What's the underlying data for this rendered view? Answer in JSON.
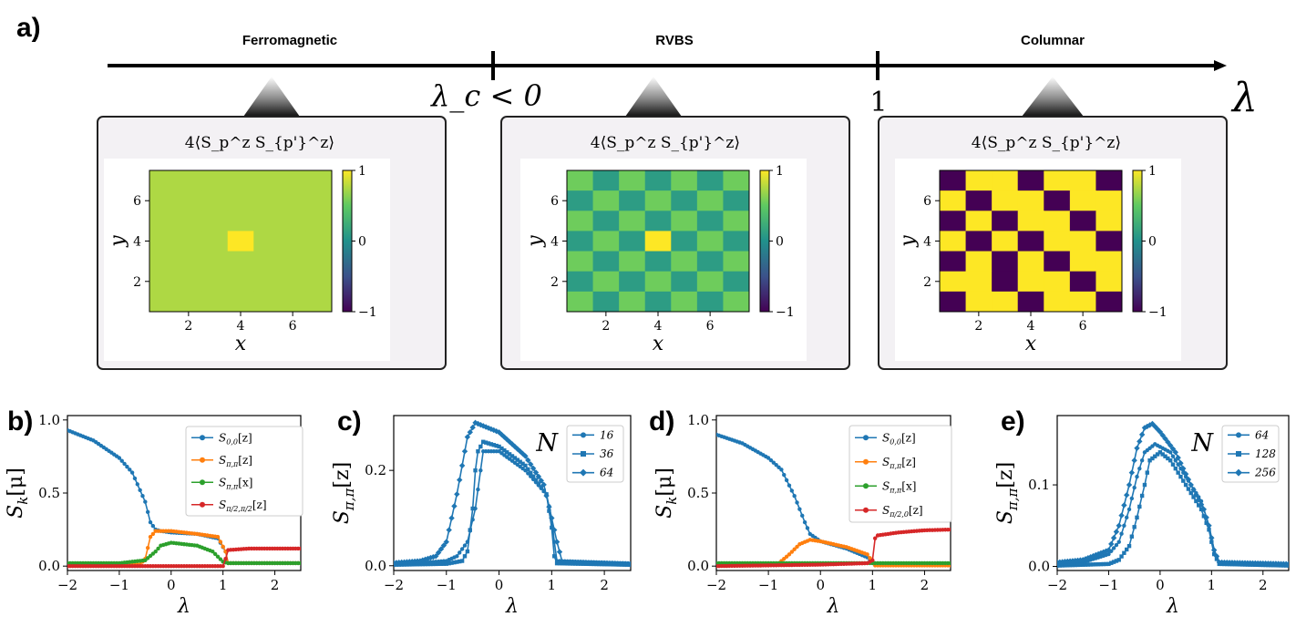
{
  "panel_labels": [
    "a)",
    "b)",
    "c)",
    "d)",
    "e)"
  ],
  "phase_axis": {
    "phases": [
      "Ferromagnetic",
      "RVBS",
      "Columnar"
    ],
    "tick_labels": [
      "λ_c < 0",
      "1"
    ],
    "axis_label": "λ"
  },
  "heatmap_common": {
    "title": "4⟨S_p^z S_{p'}^z⟩",
    "xlabel": "x",
    "ylabel": "y",
    "xticks": [
      "2",
      "4",
      "6"
    ],
    "yticks": [
      "2",
      "4",
      "6"
    ],
    "colorbar_ticks": [
      "1",
      "0",
      "−1"
    ]
  },
  "colors": {
    "blue": "#1f77b4",
    "orange": "#ff7f0e",
    "green": "#2ca02c",
    "red": "#d62728",
    "panel_bg": "#f3f1f4",
    "yellow": "#fde725",
    "purple": "#440154",
    "teal": "#21918c",
    "lightgreen": "#5ec962",
    "ferro": "#c8e02a"
  },
  "chart_data": [
    {
      "panel": "a-ferromagnetic",
      "type": "heatmap",
      "title": "4⟨S_p^z S_{p'}^z⟩",
      "xlabel": "x",
      "ylabel": "y",
      "grid_size": [
        7,
        7
      ],
      "vmin": -1,
      "vmax": 1,
      "pattern": "uniform",
      "base_value": 0.75,
      "center_cell": [
        4,
        4
      ],
      "center_value": 1
    },
    {
      "panel": "a-rvbs",
      "type": "heatmap",
      "title": "4⟨S_p^z S_{p'}^z⟩",
      "xlabel": "x",
      "ylabel": "y",
      "grid_size": [
        7,
        7
      ],
      "vmin": -1,
      "vmax": 1,
      "pattern": "checkerboard",
      "values_pair": [
        0.55,
        0.1
      ],
      "center_cell": [
        4,
        4
      ],
      "center_value": 1
    },
    {
      "panel": "a-columnar",
      "type": "heatmap",
      "title": "4⟨S_p^z S_{p'}^z⟩",
      "xlabel": "x",
      "ylabel": "y",
      "grid_size": [
        7,
        7
      ],
      "vmin": -1,
      "vmax": 1,
      "pattern": "columnar",
      "rows_top_to_bottom": [
        [
          -1,
          1,
          1,
          -1,
          1,
          1,
          -1
        ],
        [
          1,
          -1,
          1,
          1,
          -1,
          1,
          1
        ],
        [
          -1,
          1,
          -1,
          1,
          1,
          -1,
          1
        ],
        [
          1,
          -1,
          1,
          -1,
          1,
          1,
          -1
        ],
        [
          -1,
          1,
          -1,
          1,
          -1,
          1,
          1
        ],
        [
          1,
          1,
          -1,
          1,
          1,
          -1,
          1
        ],
        [
          -1,
          1,
          1,
          -1,
          1,
          1,
          -1
        ]
      ]
    },
    {
      "panel": "b",
      "type": "line",
      "xlabel": "λ",
      "ylabel": "S_k[μ]",
      "xlim": [
        -2,
        2.5
      ],
      "ylim": [
        -0.03,
        1.03
      ],
      "xticks": [
        "−2",
        "−1",
        "0",
        "1",
        "2"
      ],
      "yticks": [
        "0.0",
        "0.5",
        "1.0"
      ],
      "legend_position": "right-middle",
      "series": [
        {
          "name": "S_{0,0}[z]",
          "color": "blue",
          "x": [
            -2,
            -1.5,
            -1,
            -0.75,
            -0.5,
            -0.4,
            -0.3,
            -0.2,
            0,
            0.5,
            0.9,
            1.05,
            1.1,
            2.5
          ],
          "y": [
            0.93,
            0.86,
            0.74,
            0.64,
            0.44,
            0.3,
            0.25,
            0.24,
            0.23,
            0.22,
            0.19,
            0.1,
            0.02,
            0.02
          ]
        },
        {
          "name": "S_{π,π}[z]",
          "color": "orange",
          "x": [
            -2,
            -0.6,
            -0.5,
            -0.4,
            -0.3,
            0,
            0.5,
            0.9,
            1.05,
            1.1,
            2.5
          ],
          "y": [
            0.01,
            0.01,
            0.05,
            0.2,
            0.24,
            0.24,
            0.22,
            0.2,
            0.1,
            0.02,
            0.02
          ]
        },
        {
          "name": "S_{π,π}[x]",
          "color": "green",
          "x": [
            -2,
            -1,
            -0.5,
            -0.3,
            -0.2,
            0,
            0.5,
            0.8,
            1,
            1.1,
            2.5
          ],
          "y": [
            0.02,
            0.02,
            0.04,
            0.1,
            0.14,
            0.16,
            0.14,
            0.1,
            0.03,
            0.02,
            0.02
          ]
        },
        {
          "name": "S_{π/2,π/2}[z]",
          "color": "red",
          "x": [
            -2,
            0,
            1,
            1.05,
            1.1,
            1.5,
            2.5
          ],
          "y": [
            0.0,
            0.0,
            0.0,
            0.05,
            0.11,
            0.12,
            0.12
          ]
        }
      ]
    },
    {
      "panel": "c",
      "type": "line",
      "xlabel": "λ",
      "ylabel": "S_{π,π}[z]",
      "xlim": [
        -2,
        2.5
      ],
      "ylim": [
        -0.01,
        0.315
      ],
      "xticks": [
        "−2",
        "−1",
        "0",
        "1",
        "2"
      ],
      "yticks": [
        "0.0",
        "0.2"
      ],
      "legend_title": "N",
      "legend_position": "top-right",
      "series": [
        {
          "name": "16",
          "color": "blue",
          "marker": "circle",
          "x": [
            -2,
            -1.5,
            -1,
            -0.8,
            -0.6,
            -0.45,
            -0.35,
            -0.3,
            0,
            0.5,
            0.9,
            1.0,
            1.05,
            1.1,
            2.5
          ],
          "y": [
            0.005,
            0.006,
            0.01,
            0.02,
            0.05,
            0.12,
            0.2,
            0.24,
            0.24,
            0.2,
            0.15,
            0.1,
            0.05,
            0.01,
            0.005
          ]
        },
        {
          "name": "36",
          "color": "blue",
          "marker": "square",
          "x": [
            -2,
            -1,
            -0.7,
            -0.6,
            -0.5,
            -0.45,
            -0.4,
            -0.3,
            0,
            0.5,
            0.9,
            1.0,
            1.05,
            1.1,
            2.5
          ],
          "y": [
            0.002,
            0.004,
            0.01,
            0.03,
            0.12,
            0.2,
            0.24,
            0.26,
            0.25,
            0.21,
            0.15,
            0.08,
            0.02,
            0.005,
            0.002
          ]
        },
        {
          "name": "64",
          "color": "blue",
          "marker": "diamond",
          "x": [
            -2,
            -1.5,
            -1.2,
            -1,
            -0.8,
            -0.6,
            -0.45,
            0,
            0.5,
            0.85,
            1.0,
            1.1,
            1.2,
            2.5
          ],
          "y": [
            0.006,
            0.01,
            0.02,
            0.05,
            0.15,
            0.27,
            0.3,
            0.28,
            0.23,
            0.17,
            0.1,
            0.05,
            0.008,
            0.003
          ]
        }
      ]
    },
    {
      "panel": "d",
      "type": "line",
      "xlabel": "λ",
      "ylabel": "S_k[μ]",
      "xlim": [
        -2,
        2.5
      ],
      "ylim": [
        -0.03,
        1.03
      ],
      "xticks": [
        "−2",
        "−1",
        "0",
        "1",
        "2"
      ],
      "yticks": [
        "0.0",
        "0.5",
        "1.0"
      ],
      "legend_position": "right-middle",
      "series": [
        {
          "name": "S_{0,0}[z]",
          "color": "blue",
          "x": [
            -2,
            -1.5,
            -1,
            -0.75,
            -0.5,
            -0.3,
            -0.2,
            0,
            0.5,
            0.9,
            1.0,
            1.05,
            2.5
          ],
          "y": [
            0.9,
            0.84,
            0.74,
            0.66,
            0.48,
            0.3,
            0.22,
            0.17,
            0.12,
            0.06,
            0.02,
            0.01,
            0.01
          ]
        },
        {
          "name": "S_{π,π}[z]",
          "color": "orange",
          "x": [
            -2,
            -1,
            -0.8,
            -0.6,
            -0.4,
            -0.2,
            0,
            0.5,
            0.9,
            1.0,
            1.05,
            2.5
          ],
          "y": [
            0.01,
            0.01,
            0.02,
            0.08,
            0.15,
            0.18,
            0.17,
            0.13,
            0.08,
            0.03,
            0.005,
            0.005
          ]
        },
        {
          "name": "S_{π,π}[x]",
          "color": "green",
          "x": [
            -2,
            -1,
            0,
            1,
            2.5
          ],
          "y": [
            0.02,
            0.02,
            0.02,
            0.02,
            0.02
          ]
        },
        {
          "name": "S_{π/2,0}[z]",
          "color": "red",
          "x": [
            -2,
            0,
            0.9,
            1.0,
            1.05,
            1.1,
            1.5,
            2,
            2.5
          ],
          "y": [
            0.0,
            0.01,
            0.02,
            0.04,
            0.19,
            0.21,
            0.23,
            0.245,
            0.25
          ]
        }
      ]
    },
    {
      "panel": "e",
      "type": "line",
      "xlabel": "λ",
      "ylabel": "S_{π,π}[z]",
      "xlim": [
        -2,
        2.5
      ],
      "ylim": [
        -0.005,
        0.185
      ],
      "xticks": [
        "−2",
        "−1",
        "0",
        "1",
        "2"
      ],
      "yticks": [
        "0.0",
        "0.1"
      ],
      "legend_title": "N",
      "legend_position": "top-right",
      "series": [
        {
          "name": "64",
          "color": "blue",
          "marker": "circle",
          "x": [
            -2,
            -1.5,
            -1,
            -0.8,
            -0.6,
            -0.45,
            -0.3,
            -0.1,
            0.2,
            0.5,
            0.8,
            0.95,
            1.05,
            1.15,
            2.5
          ],
          "y": [
            0.003,
            0.005,
            0.015,
            0.03,
            0.07,
            0.11,
            0.14,
            0.15,
            0.14,
            0.11,
            0.08,
            0.05,
            0.02,
            0.005,
            0.003
          ]
        },
        {
          "name": "128",
          "color": "blue",
          "marker": "square",
          "x": [
            -2,
            -1,
            -0.8,
            -0.6,
            -0.45,
            -0.3,
            -0.2,
            0,
            0.2,
            0.5,
            0.8,
            0.95,
            1.05,
            1.15,
            2.5
          ],
          "y": [
            0.001,
            0.003,
            0.008,
            0.025,
            0.06,
            0.1,
            0.13,
            0.14,
            0.13,
            0.1,
            0.07,
            0.045,
            0.015,
            0.003,
            0.001
          ]
        },
        {
          "name": "256",
          "color": "blue",
          "marker": "diamond",
          "x": [
            -2,
            -1.5,
            -1,
            -0.8,
            -0.6,
            -0.45,
            -0.3,
            -0.15,
            0,
            0.3,
            0.6,
            0.85,
            0.95,
            1.05,
            1.15,
            2.5
          ],
          "y": [
            0.005,
            0.008,
            0.02,
            0.05,
            0.1,
            0.145,
            0.17,
            0.175,
            0.165,
            0.14,
            0.1,
            0.07,
            0.05,
            0.02,
            0.005,
            0.003
          ]
        }
      ]
    }
  ]
}
